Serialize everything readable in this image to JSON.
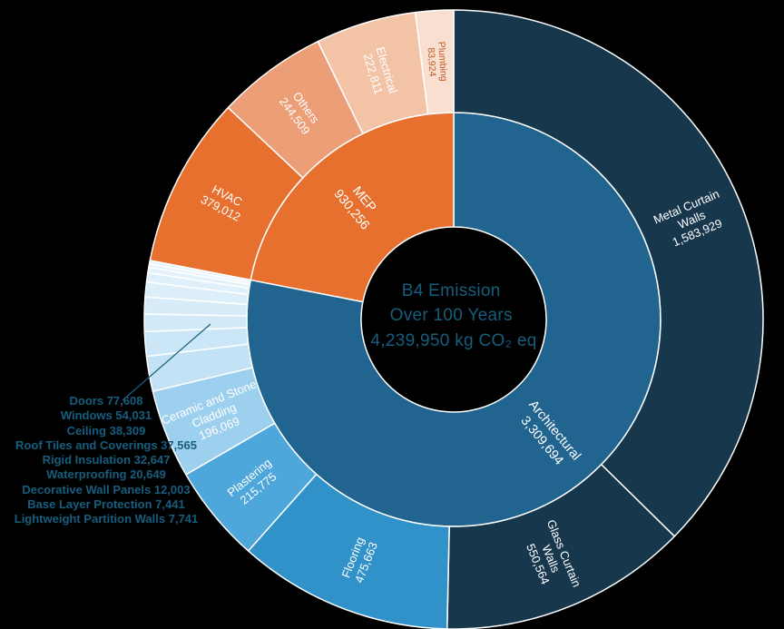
{
  "chart_data": {
    "type": "sunburst",
    "title": "B4 Emission Over 100 Years",
    "center": {
      "title_line1": "B4 Emission",
      "title_line2": "Over 100 Years",
      "total_label": "4,239,950 kg CO₂ eq"
    },
    "total": 4239950,
    "units": "kg CO₂ eq",
    "text_color": "#175E7E",
    "slice_label_color": "#FFFFFF",
    "callout_line_color": "#175E7E",
    "background": "#000000",
    "rings": {
      "inner": [
        {
          "name": "Architectural",
          "value": 3309694,
          "color": "#20648F"
        },
        {
          "name": "MEP",
          "value": 930256,
          "color": "#E7702E"
        }
      ],
      "outer": [
        {
          "name": "Metal Curtain Walls",
          "value": 1583929,
          "color": "#17374D",
          "label_lines": [
            "Metal Curtain",
            "Walls"
          ]
        },
        {
          "name": "Glass Curtain Walls",
          "value": 550564,
          "color": "#17374D",
          "label_lines": [
            "Glass Curtain",
            "Walls"
          ]
        },
        {
          "name": "Flooring",
          "value": 475663,
          "color": "#3092C9",
          "label_lines": [
            "Flooring"
          ]
        },
        {
          "name": "Plastering",
          "value": 215775,
          "color": "#4EA7DA",
          "label_lines": [
            "Plastering"
          ]
        },
        {
          "name": "Ceramic and Stone Cladding",
          "value": 196069,
          "color": "#9DCFEE",
          "label_lines": [
            "Ceramic and Stone",
            "Cladding"
          ]
        },
        {
          "name": "Doors",
          "value": 77608,
          "color": "#C3E2F5",
          "callout": true
        },
        {
          "name": "Windows",
          "value": 54031,
          "color": "#CBE6F6",
          "callout": true
        },
        {
          "name": "Ceiling",
          "value": 38309,
          "color": "#D2E9F7",
          "callout": true
        },
        {
          "name": "Roof Tiles and Coverings",
          "value": 37565,
          "color": "#D7ECF8",
          "callout": true
        },
        {
          "name": "Rigid Insulation",
          "value": 32647,
          "color": "#DBEEF9",
          "callout": true
        },
        {
          "name": "Waterproofing",
          "value": 20649,
          "color": "#DFF0FA",
          "callout": true
        },
        {
          "name": "Decorative Wall Panels",
          "value": 12003,
          "color": "#E2F1FA",
          "callout": true
        },
        {
          "name": "Base Layer Protection",
          "value": 7441,
          "color": "#E5F3FB",
          "callout": true
        },
        {
          "name": "Lightweight Partition Walls",
          "value": 7741,
          "color": "#E8F4FB",
          "callout": true
        },
        {
          "name": "HVAC",
          "value": 379012,
          "color": "#E7702E",
          "label_lines": [
            "HVAC"
          ]
        },
        {
          "name": "Others",
          "value": 244509,
          "color": "#EC9E77",
          "label_lines": [
            "Others"
          ]
        },
        {
          "name": "Electrical",
          "value": 222811,
          "color": "#F3C3A6",
          "label_lines": [
            "Electrical"
          ]
        },
        {
          "name": "Plumbing",
          "value": 83924,
          "color": "#F9DFD0",
          "label_lines": [
            "Plumbing"
          ],
          "text_color": "#C05A28",
          "small": true
        }
      ]
    }
  }
}
